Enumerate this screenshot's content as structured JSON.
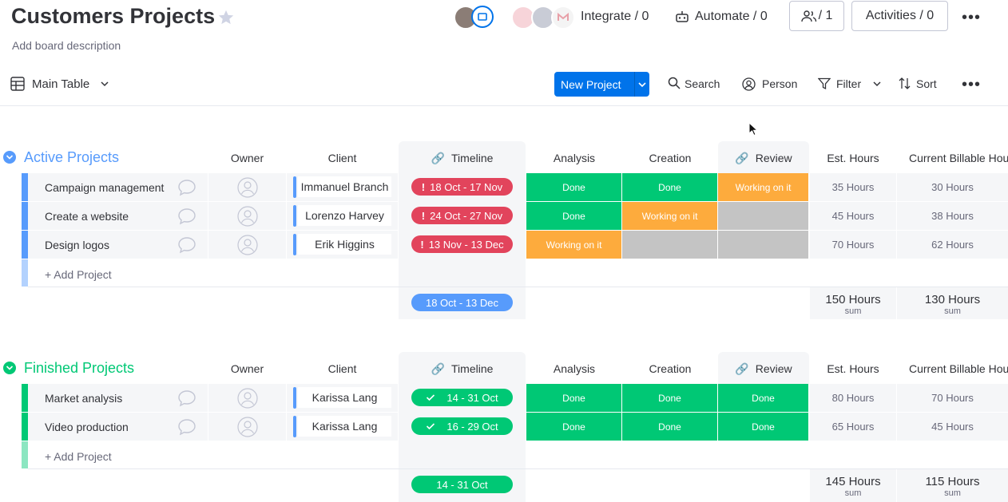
{
  "board": {
    "title": "Customers Projects",
    "description": "Add board description"
  },
  "header": {
    "integrate": "Integrate / 0",
    "automate": "Automate / 0",
    "members": "/ 1",
    "activities": "Activities / 0"
  },
  "toolbar": {
    "view": "Main Table",
    "new_project": "New Project",
    "search": "Search",
    "person": "Person",
    "filter": "Filter",
    "sort": "Sort"
  },
  "columns": {
    "owner": "Owner",
    "client": "Client",
    "timeline": "Timeline",
    "analysis": "Analysis",
    "creation": "Creation",
    "review": "Review",
    "est_hours": "Est. Hours",
    "billable": "Current Billable Hours"
  },
  "colors": {
    "done": "#00c875",
    "working": "#fdab3d",
    "stuck_timeline": "#e2445c",
    "active_group": "#579bfc",
    "finished_group": "#00c875",
    "empty": "#c4c4c4"
  },
  "groups": [
    {
      "title": "Active Projects",
      "add_label": "+ Add Project",
      "rows": [
        {
          "name": "Campaign management",
          "client": "Immanuel Branch",
          "timeline": "18 Oct - 17 Nov",
          "analysis": "Done",
          "creation": "Done",
          "review": "Working on it",
          "est": "35 Hours",
          "billable": "30 Hours"
        },
        {
          "name": "Create a website",
          "client": "Lorenzo Harvey",
          "timeline": "24 Oct - 27 Nov",
          "analysis": "Done",
          "creation": "Working on it",
          "review": "",
          "est": "45 Hours",
          "billable": "38 Hours"
        },
        {
          "name": "Design logos",
          "client": "Erik Higgins",
          "timeline": "13 Nov - 13 Dec",
          "analysis": "Working on it",
          "creation": "",
          "review": "",
          "est": "70 Hours",
          "billable": "62 Hours"
        }
      ],
      "summary": {
        "timeline": "18 Oct - 13 Dec",
        "est": "150 Hours",
        "billable": "130 Hours",
        "label": "sum"
      }
    },
    {
      "title": "Finished Projects",
      "add_label": "+ Add Project",
      "rows": [
        {
          "name": "Market analysis",
          "client": "Karissa Lang",
          "timeline": "14 - 31 Oct",
          "analysis": "Done",
          "creation": "Done",
          "review": "Done",
          "est": "80 Hours",
          "billable": "70 Hours"
        },
        {
          "name": "Video production",
          "client": "Karissa Lang",
          "timeline": "16 - 29 Oct",
          "analysis": "Done",
          "creation": "Done",
          "review": "Done",
          "est": "65 Hours",
          "billable": "45 Hours"
        }
      ],
      "summary": {
        "timeline": "14 - 31 Oct",
        "est": "145 Hours",
        "billable": "115 Hours",
        "label": "sum"
      }
    }
  ]
}
